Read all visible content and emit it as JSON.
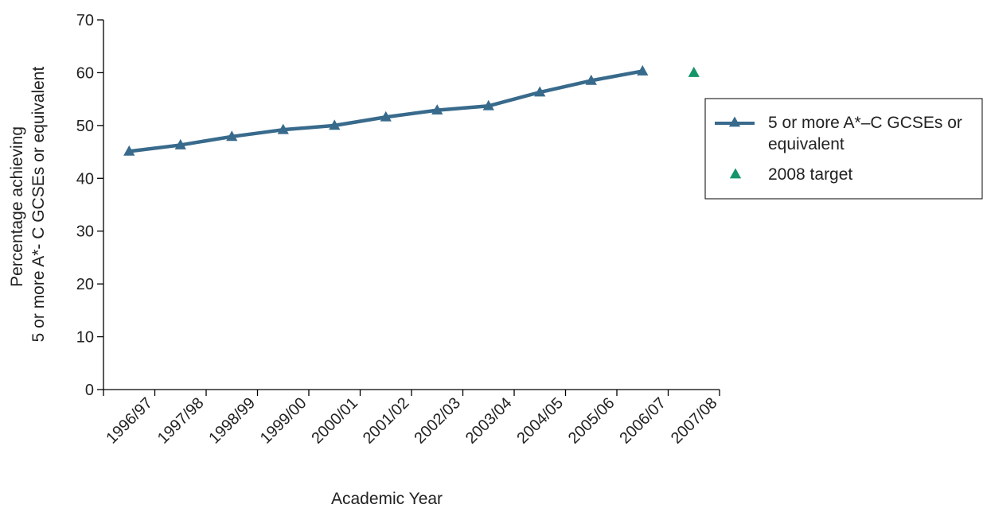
{
  "chart_data": {
    "type": "line",
    "title": "",
    "xlabel": "Academic Year",
    "ylabel_lines": [
      "Percentage achieving",
      "5 or more A*- C GCSEs or equivalent"
    ],
    "categories": [
      "1996/97",
      "1997/98",
      "1998/99",
      "1999/00",
      "2000/01",
      "2001/02",
      "2002/03",
      "2003/04",
      "2004/05",
      "2005/06",
      "2006/07",
      "2007/08"
    ],
    "ylim": [
      0,
      70
    ],
    "yticks": [
      0,
      10,
      20,
      30,
      40,
      50,
      60,
      70
    ],
    "grid": false,
    "series": [
      {
        "name": "5 or more A*–C GCSEs or equivalent",
        "name_lines": [
          "5 or more A*–C GCSEs or",
          "equivalent"
        ],
        "color": "#386a8c",
        "marker": "triangle",
        "values": [
          45.1,
          46.3,
          47.9,
          49.2,
          50.0,
          51.6,
          52.9,
          53.7,
          56.3,
          58.5,
          60.3,
          null
        ]
      },
      {
        "name": "2008 target",
        "name_lines": [
          "2008 target"
        ],
        "color": "#14956a",
        "marker": "triangle",
        "style": "marker-only",
        "values": [
          null,
          null,
          null,
          null,
          null,
          null,
          null,
          null,
          null,
          null,
          null,
          60
        ]
      }
    ],
    "legend_position": "right"
  }
}
